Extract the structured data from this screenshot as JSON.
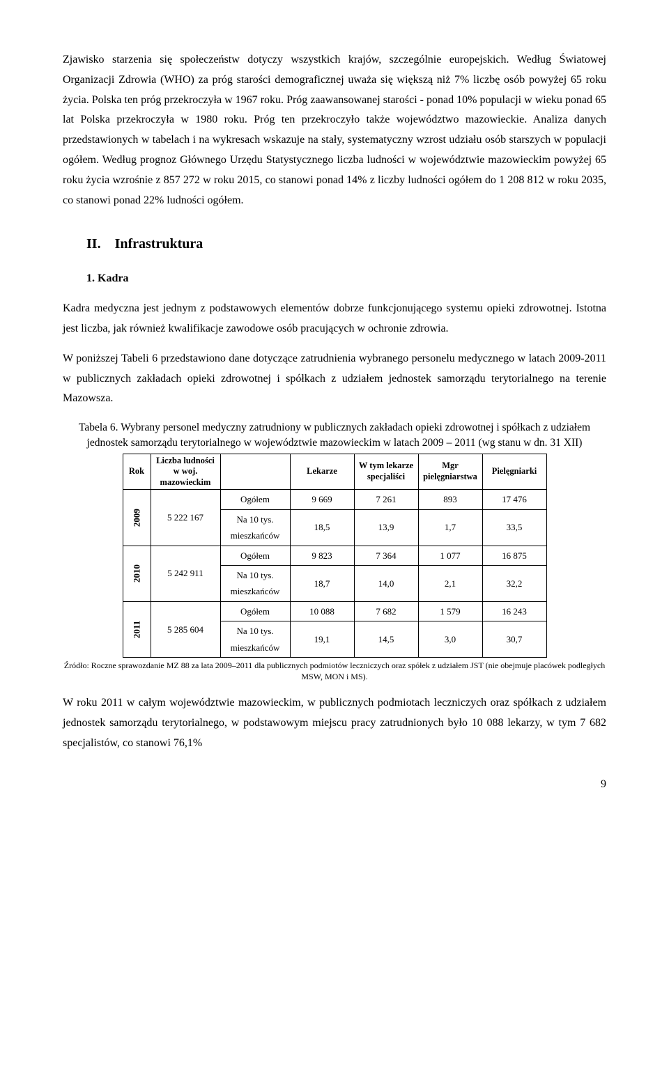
{
  "para1": "Zjawisko starzenia się społeczeństw dotyczy wszystkich krajów, szczególnie europejskich. Według Światowej Organizacji Zdrowia (WHO) za próg starości demograficznej uważa się większą niż 7% liczbę osób powyżej 65 roku życia. Polska ten próg przekroczyła w 1967 roku. Próg zaawansowanej starości - ponad 10% populacji w wieku ponad 65 lat Polska przekroczyła w 1980 roku. Próg ten przekroczyło także województwo mazowieckie. Analiza danych przedstawionych w tabelach i na wykresach wskazuje na stały, systematyczny wzrost udziału osób starszych w populacji ogółem. Według prognoz Głównego Urzędu Statystycznego liczba ludności w województwie mazowieckim powyżej 65 roku życia wzrośnie z 857 272 w roku 2015, co stanowi ponad 14% z liczby ludności ogółem do 1 208 812 w roku 2035, co stanowi ponad 22% ludności ogółem.",
  "section2_heading": "II. Infrastruktura",
  "section2_sub1_heading": "1. Kadra",
  "para2": "Kadra medyczna jest jednym z podstawowych elementów dobrze funkcjonującego systemu opieki zdrowotnej. Istotna jest liczba, jak również kwalifikacje zawodowe osób pracujących w ochronie zdrowia.",
  "para3": "W poniższej Tabeli 6 przedstawiono dane dotyczące zatrudnienia wybranego personelu medycznego w latach 2009-2011 w publicznych zakładach opieki zdrowotnej  i spółkach z udziałem jednostek samorządu terytorialnego na terenie Mazowsza.",
  "table6": {
    "caption": "Tabela  6. Wybrany personel medyczny zatrudniony w publicznych zakładach opieki zdrowotnej i spółkach z udziałem jednostek samorządu terytorialnego w województwie  mazowieckim w latach 2009 – 2011 (wg stanu w dn. 31 XII)",
    "headers": {
      "rok": "Rok",
      "pop": "Liczba ludności w woj. mazowieckim",
      "metric_blank": "",
      "lekarze": "Lekarze",
      "spec": "W tym lekarze specjaliści",
      "mgr": "Mgr pielęgniarstwa",
      "piel": "Pielęgniarki"
    },
    "metric_labels": {
      "ogolem": "Ogółem",
      "per10k": "Na 10 tys. mieszkańców"
    },
    "rows": [
      {
        "year": "2009",
        "pop": "5 222 167",
        "ogolem": {
          "lekarze": "9 669",
          "spec": "7 261",
          "mgr": "893",
          "piel": "17 476"
        },
        "per10k": {
          "lekarze": "18,5",
          "spec": "13,9",
          "mgr": "1,7",
          "piel": "33,5"
        }
      },
      {
        "year": "2010",
        "pop": "5 242 911",
        "ogolem": {
          "lekarze": "9 823",
          "spec": "7 364",
          "mgr": "1 077",
          "piel": "16 875"
        },
        "per10k": {
          "lekarze": "18,7",
          "spec": "14,0",
          "mgr": "2,1",
          "piel": "32,2"
        }
      },
      {
        "year": "2011",
        "pop": "5 285 604",
        "ogolem": {
          "lekarze": "10 088",
          "spec": "7 682",
          "mgr": "1 579",
          "piel": "16 243"
        },
        "per10k": {
          "lekarze": "19,1",
          "spec": "14,5",
          "mgr": "3,0",
          "piel": "30,7"
        }
      }
    ]
  },
  "footnote": "Źródło: Roczne  sprawozdanie MZ 88 za lata 2009–2011 dla publicznych podmiotów leczniczych oraz spółek z udziałem JST (nie obejmuje placówek podległych MSW, MON i MS).",
  "para4": "W roku 2011 w całym województwie mazowieckim, w publicznych podmiotach leczniczych oraz spółkach z udziałem jednostek samorządu terytorialnego, w podstawowym miejscu pracy zatrudnionych było 10 088  lekarzy, w tym  7 682 specjalistów, co stanowi  76,1%",
  "page_number": "9"
}
